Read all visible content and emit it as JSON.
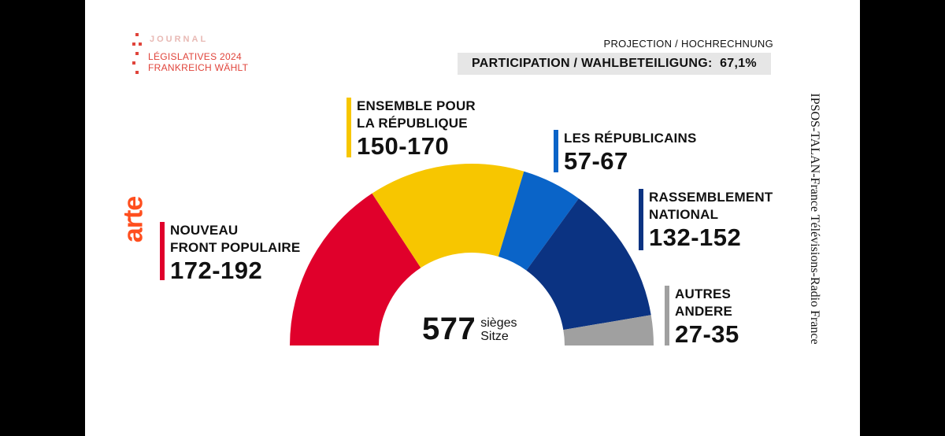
{
  "header": {
    "journal": "JOURNAL",
    "line1": "LÉGISLATIVES 2024",
    "line2": "FRANKREICH WÄHLT",
    "projection": "PROJECTION / HOCHRECHNUNG",
    "participation": "PARTICIPATION / WAHLBETEILIGUNG:  67,1%"
  },
  "logo": "arte",
  "source": "IPSOS-TALAN-France Télévisions-Radio France",
  "total": {
    "number": "577",
    "unit1": "sièges",
    "unit2": "Sitze"
  },
  "colors": {
    "brand": "#e0443b",
    "arte": "#ff4e1e",
    "nfp": "#e0002b",
    "ens": "#f7c600",
    "lr": "#0a64c8",
    "rn": "#0b3382",
    "autres": "#a0a0a0"
  },
  "chart_data": {
    "type": "pie",
    "variant": "hemicycle",
    "total": 577,
    "series": [
      {
        "name": "NOUVEAU FRONT POPULAIRE",
        "label": "172-192",
        "min": 172,
        "max": 192,
        "color": "#e0002b"
      },
      {
        "name": "ENSEMBLE POUR LA RÉPUBLIQUE",
        "label": "150-170",
        "min": 150,
        "max": 170,
        "color": "#f7c600"
      },
      {
        "name": "LES RÉPUBLICAINS",
        "label": "57-67",
        "min": 57,
        "max": 67,
        "color": "#0a64c8"
      },
      {
        "name": "RASSEMBLEMENT NATIONAL",
        "label": "132-152",
        "min": 132,
        "max": 152,
        "color": "#0b3382"
      },
      {
        "name": "AUTRES ANDERE",
        "label": "27-35",
        "min": 27,
        "max": 35,
        "color": "#a0a0a0"
      }
    ]
  },
  "labels": {
    "nfp": {
      "line1": "NOUVEAU",
      "line2": "FRONT POPULAIRE",
      "range": "172-192"
    },
    "ens": {
      "line1": "ENSEMBLE POUR",
      "line2": "LA RÉPUBLIQUE",
      "range": "150-170"
    },
    "lr": {
      "line1": "LES RÉPUBLICAINS",
      "range": "57-67"
    },
    "rn": {
      "line1": "RASSEMBLEMENT",
      "line2": "NATIONAL",
      "range": "132-152"
    },
    "autres": {
      "line1": "AUTRES",
      "line2": "ANDERE",
      "range": "27-35"
    }
  }
}
